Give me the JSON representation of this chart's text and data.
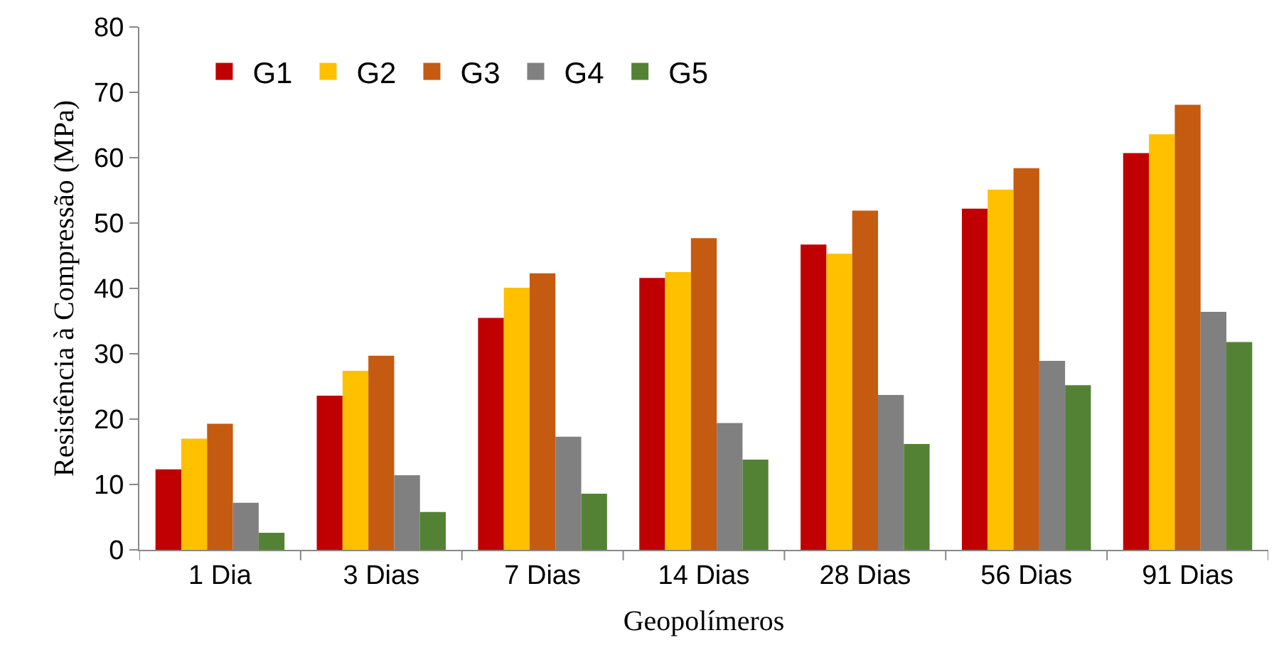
{
  "chart_data": {
    "type": "bar",
    "xlabel": "Geopolímeros",
    "ylabel": "Resistência à Compressão (MPa)",
    "categories": [
      "1 Dia",
      "3 Dias",
      "7 Dias",
      "14 Dias",
      "28 Dias",
      "56 Dias",
      "91 Dias"
    ],
    "series": [
      {
        "name": "G1",
        "color": "#c00000",
        "values": [
          12.3,
          23.6,
          35.5,
          41.6,
          46.7,
          52.2,
          60.7
        ]
      },
      {
        "name": "G2",
        "color": "#ffc000",
        "values": [
          17.0,
          27.4,
          40.1,
          42.5,
          45.3,
          55.1,
          63.6
        ]
      },
      {
        "name": "G3",
        "color": "#c55a11",
        "values": [
          19.3,
          29.7,
          42.3,
          47.7,
          51.9,
          58.4,
          68.1
        ]
      },
      {
        "name": "G4",
        "color": "#808080",
        "values": [
          7.2,
          11.4,
          17.3,
          19.4,
          23.7,
          28.9,
          36.4
        ]
      },
      {
        "name": "G5",
        "color": "#548235",
        "values": [
          2.6,
          5.8,
          8.6,
          13.8,
          16.2,
          25.2,
          31.8
        ]
      }
    ],
    "ylim": [
      0,
      80
    ],
    "yticks": [
      0,
      10,
      20,
      30,
      40,
      50,
      60,
      70,
      80
    ],
    "grid": false,
    "legend": "top left"
  }
}
